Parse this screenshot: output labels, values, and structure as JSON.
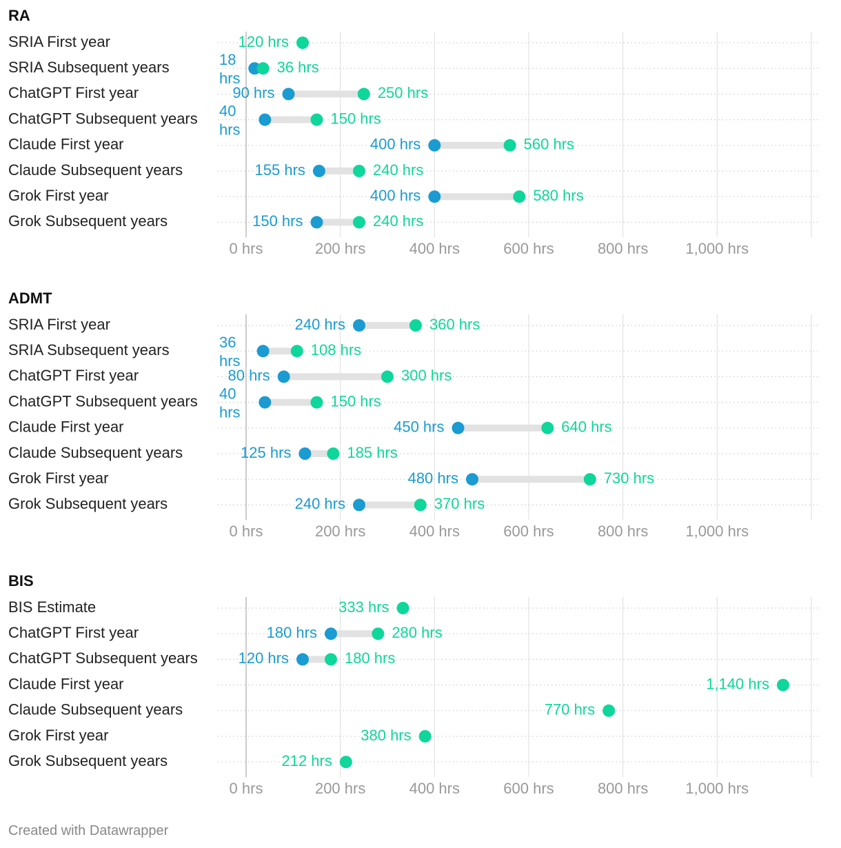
{
  "colors": {
    "low": "#1a9bd1",
    "high": "#0fd69a",
    "connector": "#e2e2e2",
    "grid": "#dddddd",
    "axis_text": "#999999",
    "label_text": "#222222"
  },
  "footer": "Created with Datawrapper",
  "chart_data": [
    {
      "type": "dumbbell",
      "title": "RA",
      "unit": "hrs",
      "xlim": [
        0,
        1200
      ],
      "ticks": [
        "0 hrs",
        "200 hrs",
        "400 hrs",
        "600 hrs",
        "800 hrs",
        "1,000 hrs"
      ],
      "tick_values": [
        0,
        200,
        400,
        600,
        800,
        1000
      ],
      "rows": [
        {
          "label": "SRIA First year",
          "low": null,
          "low_label": null,
          "high": 120,
          "high_label": "120 hrs"
        },
        {
          "label": "SRIA Subsequent years",
          "low": 18,
          "low_label": "18 hrs",
          "high": 36,
          "high_label": "36 hrs"
        },
        {
          "label": "ChatGPT First year",
          "low": 90,
          "low_label": "90 hrs",
          "high": 250,
          "high_label": "250 hrs"
        },
        {
          "label": "ChatGPT Subsequent years",
          "low": 40,
          "low_label": "40 hrs",
          "high": 150,
          "high_label": "150 hrs"
        },
        {
          "label": "Claude First year",
          "low": 400,
          "low_label": "400 hrs",
          "high": 560,
          "high_label": "560 hrs"
        },
        {
          "label": "Claude Subsequent years",
          "low": 155,
          "low_label": "155 hrs",
          "high": 240,
          "high_label": "240 hrs"
        },
        {
          "label": "Grok First year",
          "low": 400,
          "low_label": "400 hrs",
          "high": 580,
          "high_label": "580 hrs"
        },
        {
          "label": "Grok Subsequent years",
          "low": 150,
          "low_label": "150 hrs",
          "high": 240,
          "high_label": "240 hrs"
        }
      ]
    },
    {
      "type": "dumbbell",
      "title": "ADMT",
      "unit": "hrs",
      "xlim": [
        0,
        1200
      ],
      "ticks": [
        "0 hrs",
        "200 hrs",
        "400 hrs",
        "600 hrs",
        "800 hrs",
        "1,000 hrs"
      ],
      "tick_values": [
        0,
        200,
        400,
        600,
        800,
        1000
      ],
      "rows": [
        {
          "label": "SRIA First year",
          "low": 240,
          "low_label": "240 hrs",
          "high": 360,
          "high_label": "360 hrs"
        },
        {
          "label": "SRIA Subsequent years",
          "low": 36,
          "low_label": "36 hrs",
          "high": 108,
          "high_label": "108 hrs"
        },
        {
          "label": "ChatGPT First year",
          "low": 80,
          "low_label": "80 hrs",
          "high": 300,
          "high_label": "300 hrs"
        },
        {
          "label": "ChatGPT Subsequent years",
          "low": 40,
          "low_label": "40 hrs",
          "high": 150,
          "high_label": "150 hrs"
        },
        {
          "label": "Claude First year",
          "low": 450,
          "low_label": "450 hrs",
          "high": 640,
          "high_label": "640 hrs"
        },
        {
          "label": "Claude Subsequent years",
          "low": 125,
          "low_label": "125 hrs",
          "high": 185,
          "high_label": "185 hrs"
        },
        {
          "label": "Grok First year",
          "low": 480,
          "low_label": "480 hrs",
          "high": 730,
          "high_label": "730 hrs"
        },
        {
          "label": "Grok Subsequent years",
          "low": 240,
          "low_label": "240 hrs",
          "high": 370,
          "high_label": "370 hrs"
        }
      ]
    },
    {
      "type": "dumbbell",
      "title": "BIS",
      "unit": "hrs",
      "xlim": [
        0,
        1200
      ],
      "ticks": [
        "0 hrs",
        "200 hrs",
        "400 hrs",
        "600 hrs",
        "800 hrs",
        "1,000 hrs"
      ],
      "tick_values": [
        0,
        200,
        400,
        600,
        800,
        1000
      ],
      "rows": [
        {
          "label": "BIS Estimate",
          "low": null,
          "low_label": null,
          "high": 333,
          "high_label": "333 hrs"
        },
        {
          "label": "ChatGPT First year",
          "low": 180,
          "low_label": "180 hrs",
          "high": 280,
          "high_label": "280 hrs"
        },
        {
          "label": "ChatGPT Subsequent years",
          "low": 120,
          "low_label": "120 hrs",
          "high": 180,
          "high_label": "180 hrs"
        },
        {
          "label": "Claude First year",
          "low": null,
          "low_label": null,
          "high": 1140,
          "high_label": "1,140 hrs"
        },
        {
          "label": "Claude Subsequent years",
          "low": null,
          "low_label": null,
          "high": 770,
          "high_label": "770 hrs"
        },
        {
          "label": "Grok First year",
          "low": null,
          "low_label": null,
          "high": 380,
          "high_label": "380 hrs"
        },
        {
          "label": "Grok Subsequent years",
          "low": null,
          "low_label": null,
          "high": 212,
          "high_label": "212 hrs"
        }
      ]
    }
  ]
}
